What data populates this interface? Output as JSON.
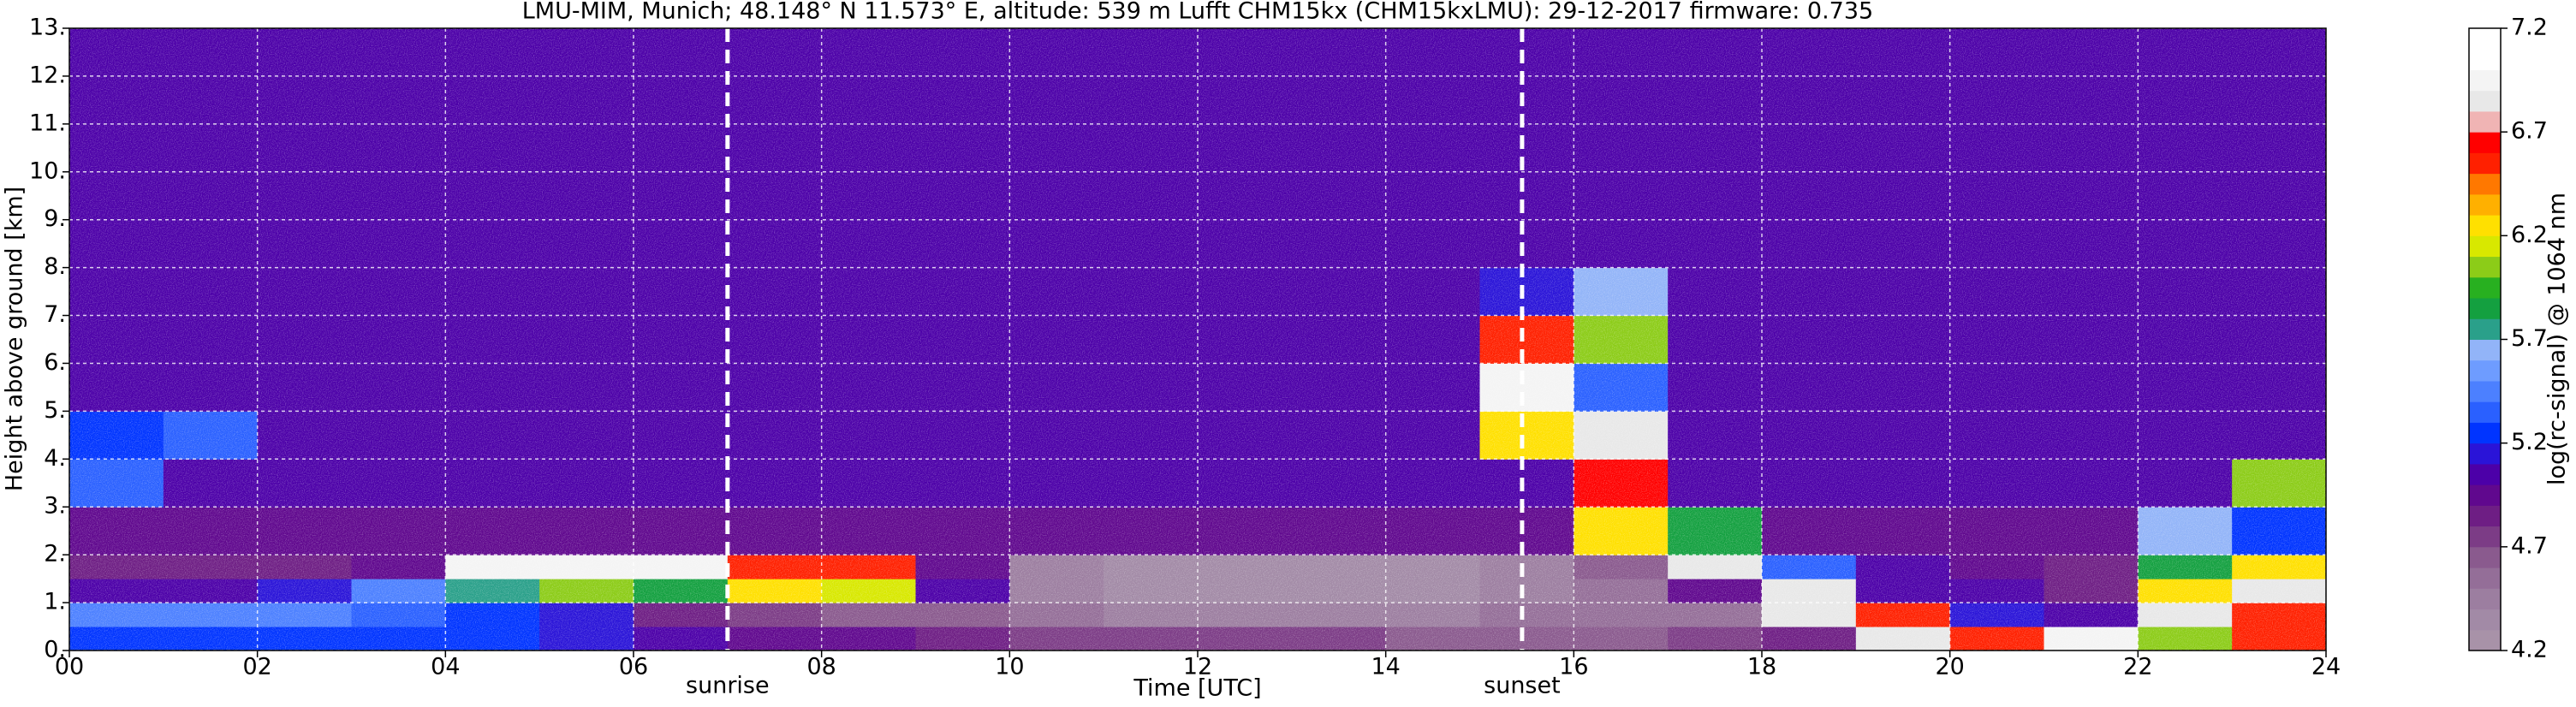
{
  "chart_data": {
    "type": "heatmap",
    "title": "LMU-MIM, Munich; 48.148° N 11.573° E, altitude: 539 m    Lufft CHM15kx (CHM15kxLMU): 29-12-2017    firmware: 0.735",
    "xlabel": "Time [UTC]",
    "ylabel": "Height above ground [km]",
    "xlim": [
      0,
      24
    ],
    "xticks": [
      {
        "value": 0,
        "label": "00"
      },
      {
        "value": 2,
        "label": "02"
      },
      {
        "value": 4,
        "label": "04"
      },
      {
        "value": 6,
        "label": "06"
      },
      {
        "value": 8,
        "label": "08"
      },
      10,
      12,
      14,
      16,
      18,
      20,
      22,
      24
    ],
    "ylim": [
      0,
      13
    ],
    "yticks": [
      {
        "value": 0,
        "label": "0."
      },
      {
        "value": 1,
        "label": "1."
      },
      {
        "value": 2,
        "label": "2."
      },
      {
        "value": 3,
        "label": "3."
      },
      {
        "value": 4,
        "label": "4."
      },
      {
        "value": 5,
        "label": "5."
      },
      {
        "value": 6,
        "label": "6."
      },
      {
        "value": 7,
        "label": "7."
      },
      {
        "value": 8,
        "label": "8."
      },
      {
        "value": 9,
        "label": "9."
      },
      {
        "value": 10,
        "label": "10."
      },
      {
        "value": 11,
        "label": "11."
      },
      {
        "value": 12,
        "label": "12."
      },
      {
        "value": 13,
        "label": "13."
      }
    ],
    "grid": true,
    "xbins": [
      0,
      1,
      2,
      3,
      4,
      5,
      6,
      7,
      8,
      9,
      10,
      11,
      12,
      13,
      14,
      15,
      16,
      17,
      18,
      19,
      20,
      21,
      22,
      23,
      24
    ],
    "ybins": [
      0,
      0.5,
      1,
      1.5,
      2,
      3,
      4,
      5,
      6,
      7,
      8,
      13
    ],
    "z": [
      [
        5.2,
        5.2,
        5.2,
        5.2,
        5.2,
        5.1,
        5.0,
        4.9,
        4.9,
        4.8,
        4.7,
        4.7,
        4.7,
        4.7,
        4.6,
        4.6,
        4.6,
        4.7,
        4.8,
        6.8,
        6.5,
        6.9,
        6.0,
        6.5
      ],
      [
        5.4,
        5.4,
        5.4,
        5.3,
        5.2,
        5.1,
        4.8,
        4.7,
        4.6,
        4.6,
        4.5,
        4.4,
        4.4,
        4.4,
        4.4,
        4.5,
        4.5,
        4.5,
        6.8,
        6.5,
        5.1,
        5.0,
        6.8,
        6.5
      ],
      [
        5.0,
        5.0,
        5.1,
        5.4,
        5.7,
        6.0,
        5.8,
        6.2,
        6.1,
        5.0,
        4.4,
        4.3,
        4.3,
        4.3,
        4.3,
        4.4,
        4.5,
        4.9,
        6.8,
        5.0,
        5.0,
        4.8,
        6.2,
        6.8
      ],
      [
        4.8,
        4.8,
        4.8,
        4.9,
        6.9,
        6.9,
        6.9,
        6.5,
        6.5,
        4.9,
        4.4,
        4.3,
        4.3,
        4.3,
        4.3,
        4.4,
        4.6,
        6.8,
        5.3,
        5.0,
        4.9,
        4.8,
        5.8,
        6.2
      ],
      [
        4.9,
        4.9,
        4.9,
        4.9,
        4.9,
        4.9,
        4.9,
        4.9,
        4.9,
        4.9,
        4.9,
        4.9,
        4.9,
        4.9,
        4.9,
        4.9,
        6.2,
        5.8,
        4.9,
        4.9,
        4.9,
        4.9,
        5.6,
        5.2
      ],
      [
        5.3,
        5.0,
        5.0,
        5.0,
        5.0,
        5.0,
        5.0,
        5.0,
        5.0,
        5.0,
        5.0,
        5.0,
        5.0,
        5.0,
        5.0,
        5.0,
        6.6,
        5.0,
        5.0,
        5.0,
        5.0,
        5.0,
        5.0,
        6.0
      ],
      [
        5.2,
        5.3,
        5.0,
        5.0,
        5.0,
        5.0,
        5.0,
        5.0,
        5.0,
        5.0,
        5.0,
        5.0,
        5.0,
        5.0,
        5.0,
        6.2,
        6.8,
        5.0,
        5.0,
        5.0,
        5.0,
        5.0,
        5.0,
        5.0
      ],
      [
        5.0,
        5.0,
        5.0,
        5.0,
        5.0,
        5.0,
        5.0,
        5.0,
        5.0,
        5.0,
        5.0,
        5.0,
        5.0,
        5.0,
        5.0,
        6.9,
        5.3,
        5.0,
        5.0,
        5.0,
        5.0,
        5.0,
        5.0,
        5.0
      ],
      [
        5.0,
        5.0,
        5.0,
        5.0,
        5.0,
        5.0,
        5.0,
        5.0,
        5.0,
        5.0,
        5.0,
        5.0,
        5.0,
        5.0,
        5.0,
        6.5,
        6.0,
        5.0,
        5.0,
        5.0,
        5.0,
        5.0,
        5.0,
        5.0
      ],
      [
        5.0,
        5.0,
        5.0,
        5.0,
        5.0,
        5.0,
        5.0,
        5.0,
        5.0,
        5.0,
        5.0,
        5.0,
        5.0,
        5.0,
        5.0,
        5.1,
        5.6,
        5.0,
        5.0,
        5.0,
        5.0,
        5.0,
        5.0,
        5.0
      ],
      [
        5.0,
        5.0,
        5.0,
        5.0,
        5.0,
        5.0,
        5.0,
        5.0,
        5.0,
        5.0,
        5.0,
        5.0,
        5.0,
        5.0,
        5.0,
        5.0,
        5.0,
        5.0,
        5.0,
        5.0,
        5.0,
        5.0,
        5.0,
        5.0
      ]
    ],
    "colorbar": {
      "label": "log(rc-signal) @ 1064 nm",
      "clim": [
        4.2,
        7.2
      ],
      "ticks": [
        4.2,
        4.7,
        5.2,
        5.7,
        6.2,
        6.7,
        7.2
      ],
      "colors": [
        "#a892a8",
        "#a28aa6",
        "#9c7ea0",
        "#946e98",
        "#8a5a8e",
        "#7c3c86",
        "#6e1e84",
        "#60088e",
        "#4c00a8",
        "#2a14d8",
        "#0034ff",
        "#2a60ff",
        "#4c80ff",
        "#6e9cff",
        "#92b4f8",
        "#2aa08a",
        "#14a040",
        "#28b020",
        "#8ccc18",
        "#d8e800",
        "#ffe000",
        "#ffb000",
        "#ff7800",
        "#ff2000",
        "#ff0000",
        "#f0b4b4",
        "#e8e8e8",
        "#f4f4f4",
        "#ffffff",
        "#ffffff"
      ]
    },
    "annotations": [
      {
        "x": 7.0,
        "label": "sunrise"
      },
      {
        "x": 15.45,
        "label": "sunset"
      }
    ]
  }
}
